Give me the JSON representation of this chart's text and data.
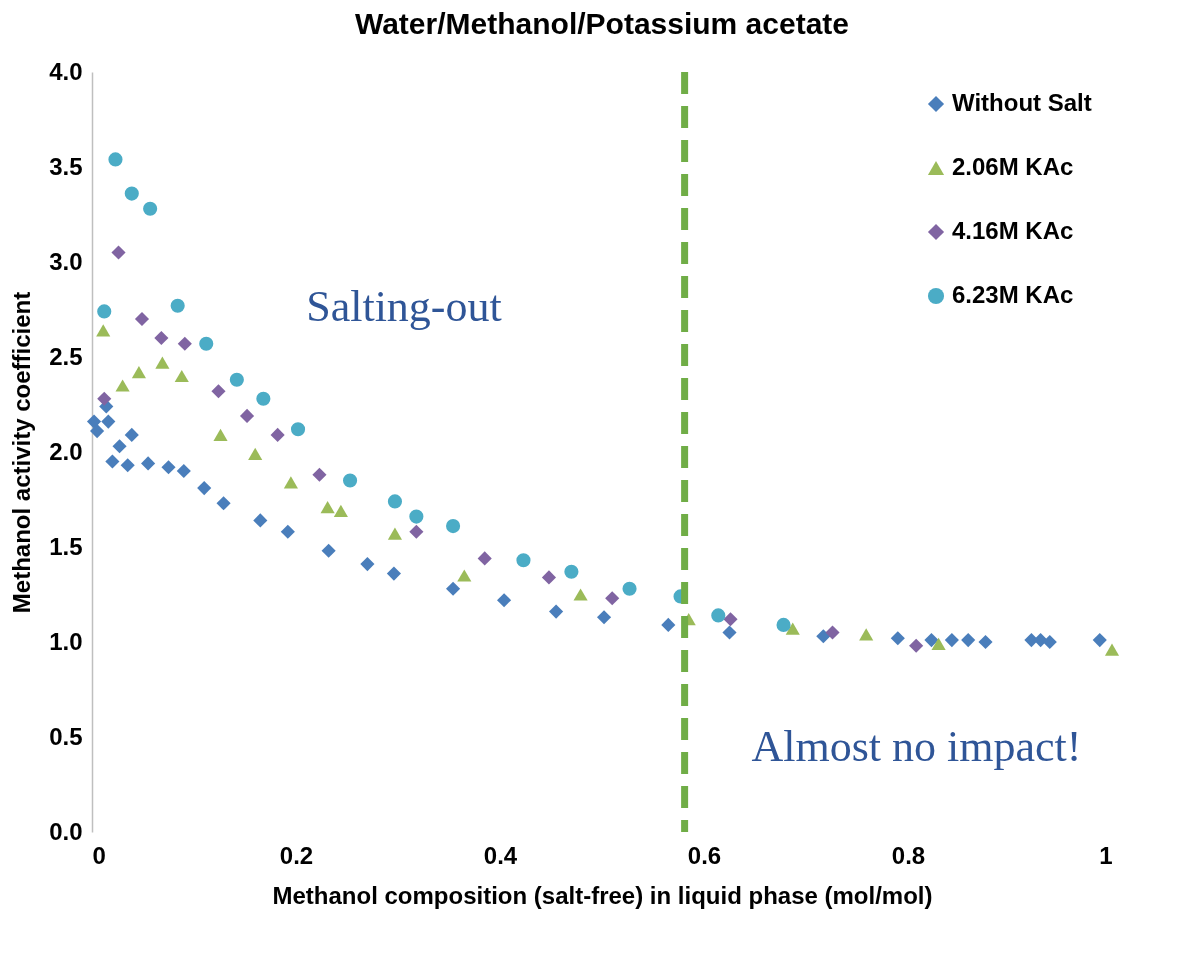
{
  "chart_data": {
    "type": "scatter",
    "title": "Water/Methanol/Potassium acetate",
    "xlabel": "Methanol composition (salt-free) in liquid phase (mol/mol)",
    "ylabel": "Methanol activity coefficient",
    "xlim": [
      0,
      1
    ],
    "xticks": [
      0,
      {
        "value": 0.2,
        "label": "0.2"
      },
      {
        "value": 0.4,
        "label": "0.4"
      },
      {
        "value": 0.6,
        "label": "0.6"
      },
      {
        "value": 0.8,
        "label": "0.8"
      },
      1
    ],
    "ylim": [
      0,
      4
    ],
    "yticks": [
      {
        "value": 0,
        "label": "0.0"
      },
      {
        "value": 0.5,
        "label": "0.5"
      },
      {
        "value": 1,
        "label": "1.0"
      },
      {
        "value": 1.5,
        "label": "1.5"
      },
      {
        "value": 2,
        "label": "2.0"
      },
      {
        "value": 2.5,
        "label": "2.5"
      },
      {
        "value": 3,
        "label": "3.0"
      },
      {
        "value": 3.5,
        "label": "3.5"
      },
      {
        "value": 4,
        "label": "4.0"
      }
    ],
    "grid": false,
    "legend": "top right",
    "series": [
      {
        "name": "Without Salt",
        "color": "#4a7ebb",
        "marker": "diamond",
        "x": [
          0.002,
          0.005,
          0.014,
          0.016,
          0.02,
          0.027,
          0.035,
          0.039,
          0.055,
          0.075,
          0.09,
          0.11,
          0.129,
          0.165,
          0.192,
          0.232,
          0.27,
          0.296,
          0.354,
          0.404,
          0.455,
          0.502,
          0.565,
          0.625,
          0.717,
          0.79,
          0.823,
          0.843,
          0.859,
          0.876,
          0.921,
          0.93,
          0.939,
          0.988
        ],
        "values": [
          2.16,
          2.11,
          2.24,
          2.16,
          1.95,
          2.03,
          1.93,
          2.09,
          1.94,
          1.92,
          1.9,
          1.81,
          1.73,
          1.64,
          1.58,
          1.48,
          1.41,
          1.36,
          1.28,
          1.22,
          1.16,
          1.13,
          1.09,
          1.05,
          1.03,
          1.02,
          1.01,
          1.01,
          1.01,
          1.0,
          1.01,
          1.01,
          1.0,
          1.01
        ]
      },
      {
        "name": "2.06M KAc",
        "color": "#9bbb59",
        "marker": "triangle",
        "x": [
          0.011,
          0.03,
          0.046,
          0.069,
          0.088,
          0.126,
          0.16,
          0.195,
          0.231,
          0.244,
          0.297,
          0.365,
          0.479,
          0.585,
          0.687,
          0.759,
          0.83,
          1.0
        ],
        "values": [
          2.64,
          2.35,
          2.42,
          2.47,
          2.4,
          2.09,
          1.99,
          1.84,
          1.71,
          1.69,
          1.57,
          1.35,
          1.25,
          1.12,
          1.07,
          1.04,
          0.99,
          0.96
        ]
      },
      {
        "name": "4.16M KAc",
        "color": "#8064a2",
        "marker": "diamond",
        "x": [
          0.012,
          0.026,
          0.049,
          0.068,
          0.091,
          0.124,
          0.152,
          0.182,
          0.223,
          0.318,
          0.385,
          0.448,
          0.51,
          0.626,
          0.726,
          0.808
        ],
        "values": [
          2.28,
          3.05,
          2.7,
          2.6,
          2.57,
          2.32,
          2.19,
          2.09,
          1.88,
          1.58,
          1.44,
          1.34,
          1.23,
          1.12,
          1.05,
          0.98
        ]
      },
      {
        "name": "6.23M KAc",
        "color": "#4bacc6",
        "marker": "circle",
        "x": [
          0.012,
          0.023,
          0.039,
          0.057,
          0.084,
          0.112,
          0.142,
          0.168,
          0.202,
          0.253,
          0.297,
          0.318,
          0.354,
          0.423,
          0.47,
          0.527,
          0.577,
          0.614,
          0.678
        ],
        "values": [
          2.74,
          3.54,
          3.36,
          3.28,
          2.77,
          2.57,
          2.38,
          2.28,
          2.12,
          1.85,
          1.74,
          1.66,
          1.61,
          1.43,
          1.37,
          1.28,
          1.24,
          1.14,
          1.09
        ]
      }
    ],
    "ref_lines": [
      {
        "axis": "x",
        "value": 0.581,
        "color": "#70ad47",
        "line_style": "dashed"
      }
    ],
    "annotations": [
      "Salting-out",
      "Almost no impact!"
    ]
  }
}
